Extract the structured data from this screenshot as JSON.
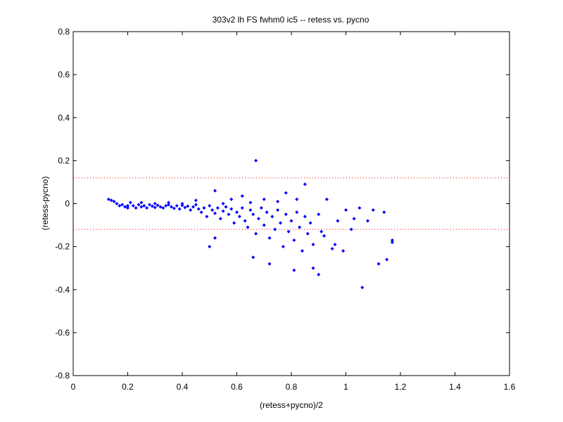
{
  "chart_data": {
    "type": "scatter",
    "title": "303v2 lh FS fwhm0 ic5 -- retess vs. pycno",
    "xlabel": "(retess+pycno)/2",
    "ylabel": "(retess-pycno)",
    "xlim": [
      0,
      1.6
    ],
    "ylim": [
      -0.8,
      0.8
    ],
    "x_ticks": [
      "0",
      "0.2",
      "0.4",
      "0.6",
      "0.8",
      "1",
      "1.2",
      "1.4",
      "1.6"
    ],
    "y_ticks": [
      "-0.8",
      "-0.6",
      "-0.4",
      "-0.2",
      "0",
      "0.2",
      "0.4",
      "0.6",
      "0.8"
    ],
    "grid": false,
    "colors": {
      "points": "#0000ff",
      "reference_lines": "#ff0000"
    },
    "reference_lines": [
      {
        "y": 0.12,
        "style": "dotted"
      },
      {
        "y": -0.12,
        "style": "dotted"
      }
    ],
    "series": [
      {
        "marker": "diamond",
        "points": [
          [
            0.13,
            0.02
          ],
          [
            0.14,
            0.015
          ],
          [
            0.15,
            0.01
          ],
          [
            0.16,
            0.0
          ],
          [
            0.17,
            -0.01
          ],
          [
            0.18,
            -0.005
          ],
          [
            0.19,
            -0.015
          ],
          [
            0.2,
            -0.01
          ],
          [
            0.2,
            -0.02
          ],
          [
            0.21,
            0.005
          ],
          [
            0.22,
            -0.01
          ],
          [
            0.23,
            -0.02
          ],
          [
            0.24,
            -0.005
          ],
          [
            0.25,
            -0.015
          ],
          [
            0.26,
            -0.01
          ],
          [
            0.27,
            -0.02
          ],
          [
            0.28,
            -0.005
          ],
          [
            0.29,
            -0.012
          ],
          [
            0.3,
            -0.018
          ],
          [
            0.31,
            -0.008
          ],
          [
            0.32,
            -0.015
          ],
          [
            0.33,
            -0.02
          ],
          [
            0.34,
            -0.01
          ],
          [
            0.35,
            -0.005
          ],
          [
            0.36,
            -0.015
          ],
          [
            0.37,
            -0.022
          ],
          [
            0.38,
            -0.01
          ],
          [
            0.39,
            -0.025
          ],
          [
            0.4,
            -0.008
          ],
          [
            0.41,
            -0.018
          ],
          [
            0.42,
            -0.012
          ],
          [
            0.43,
            -0.03
          ],
          [
            0.44,
            -0.015
          ],
          [
            0.45,
            -0.005
          ],
          [
            0.46,
            -0.025
          ],
          [
            0.47,
            -0.04
          ],
          [
            0.48,
            -0.02
          ],
          [
            0.49,
            -0.06
          ],
          [
            0.5,
            -0.01
          ],
          [
            0.51,
            -0.03
          ],
          [
            0.52,
            -0.045
          ],
          [
            0.53,
            -0.02
          ],
          [
            0.54,
            -0.07
          ],
          [
            0.55,
            -0.035
          ],
          [
            0.56,
            -0.015
          ],
          [
            0.57,
            -0.05
          ],
          [
            0.58,
            -0.025
          ],
          [
            0.59,
            -0.09
          ],
          [
            0.6,
            -0.04
          ],
          [
            0.61,
            -0.06
          ],
          [
            0.62,
            -0.02
          ],
          [
            0.63,
            -0.08
          ],
          [
            0.64,
            -0.11
          ],
          [
            0.65,
            -0.03
          ],
          [
            0.66,
            -0.05
          ],
          [
            0.67,
            -0.14
          ],
          [
            0.68,
            -0.07
          ],
          [
            0.69,
            -0.02
          ],
          [
            0.7,
            -0.1
          ],
          [
            0.71,
            -0.04
          ],
          [
            0.72,
            -0.16
          ],
          [
            0.73,
            -0.06
          ],
          [
            0.74,
            -0.12
          ],
          [
            0.75,
            -0.03
          ],
          [
            0.76,
            -0.09
          ],
          [
            0.77,
            -0.2
          ],
          [
            0.78,
            -0.05
          ],
          [
            0.79,
            -0.13
          ],
          [
            0.8,
            -0.08
          ],
          [
            0.81,
            -0.17
          ],
          [
            0.82,
            -0.04
          ],
          [
            0.83,
            -0.11
          ],
          [
            0.84,
            -0.22
          ],
          [
            0.85,
            -0.06
          ],
          [
            0.86,
            -0.14
          ],
          [
            0.87,
            -0.09
          ],
          [
            0.88,
            -0.19
          ],
          [
            0.9,
            -0.05
          ],
          [
            0.92,
            -0.15
          ],
          [
            0.95,
            -0.21
          ],
          [
            0.97,
            -0.08
          ],
          [
            1.0,
            -0.03
          ],
          [
            1.02,
            -0.12
          ],
          [
            1.05,
            -0.02
          ],
          [
            1.08,
            -0.08
          ],
          [
            1.1,
            -0.03
          ],
          [
            1.12,
            -0.28
          ],
          [
            1.14,
            -0.04
          ],
          [
            1.15,
            -0.26
          ],
          [
            1.17,
            -0.18
          ],
          [
            1.17,
            -0.17
          ],
          [
            1.06,
            -0.39
          ],
          [
            0.9,
            -0.33
          ],
          [
            0.88,
            -0.3
          ],
          [
            0.81,
            -0.31
          ],
          [
            0.72,
            -0.28
          ],
          [
            0.66,
            -0.25
          ],
          [
            0.5,
            -0.2
          ],
          [
            0.52,
            -0.16
          ],
          [
            0.67,
            0.2
          ],
          [
            0.85,
            0.09
          ],
          [
            0.52,
            0.06
          ],
          [
            0.78,
            0.05
          ],
          [
            0.62,
            0.035
          ],
          [
            0.7,
            0.02
          ],
          [
            0.45,
            0.015
          ],
          [
            0.58,
            0.02
          ],
          [
            0.35,
            0.005
          ],
          [
            0.3,
            0.0
          ],
          [
            0.25,
            0.005
          ],
          [
            0.4,
            0.0
          ],
          [
            0.55,
            0.0
          ],
          [
            0.65,
            0.005
          ],
          [
            0.75,
            0.01
          ],
          [
            0.82,
            0.02
          ],
          [
            0.93,
            0.02
          ],
          [
            1.03,
            -0.07
          ],
          [
            0.96,
            -0.19
          ],
          [
            0.99,
            -0.22
          ],
          [
            0.91,
            -0.13
          ]
        ]
      }
    ]
  }
}
